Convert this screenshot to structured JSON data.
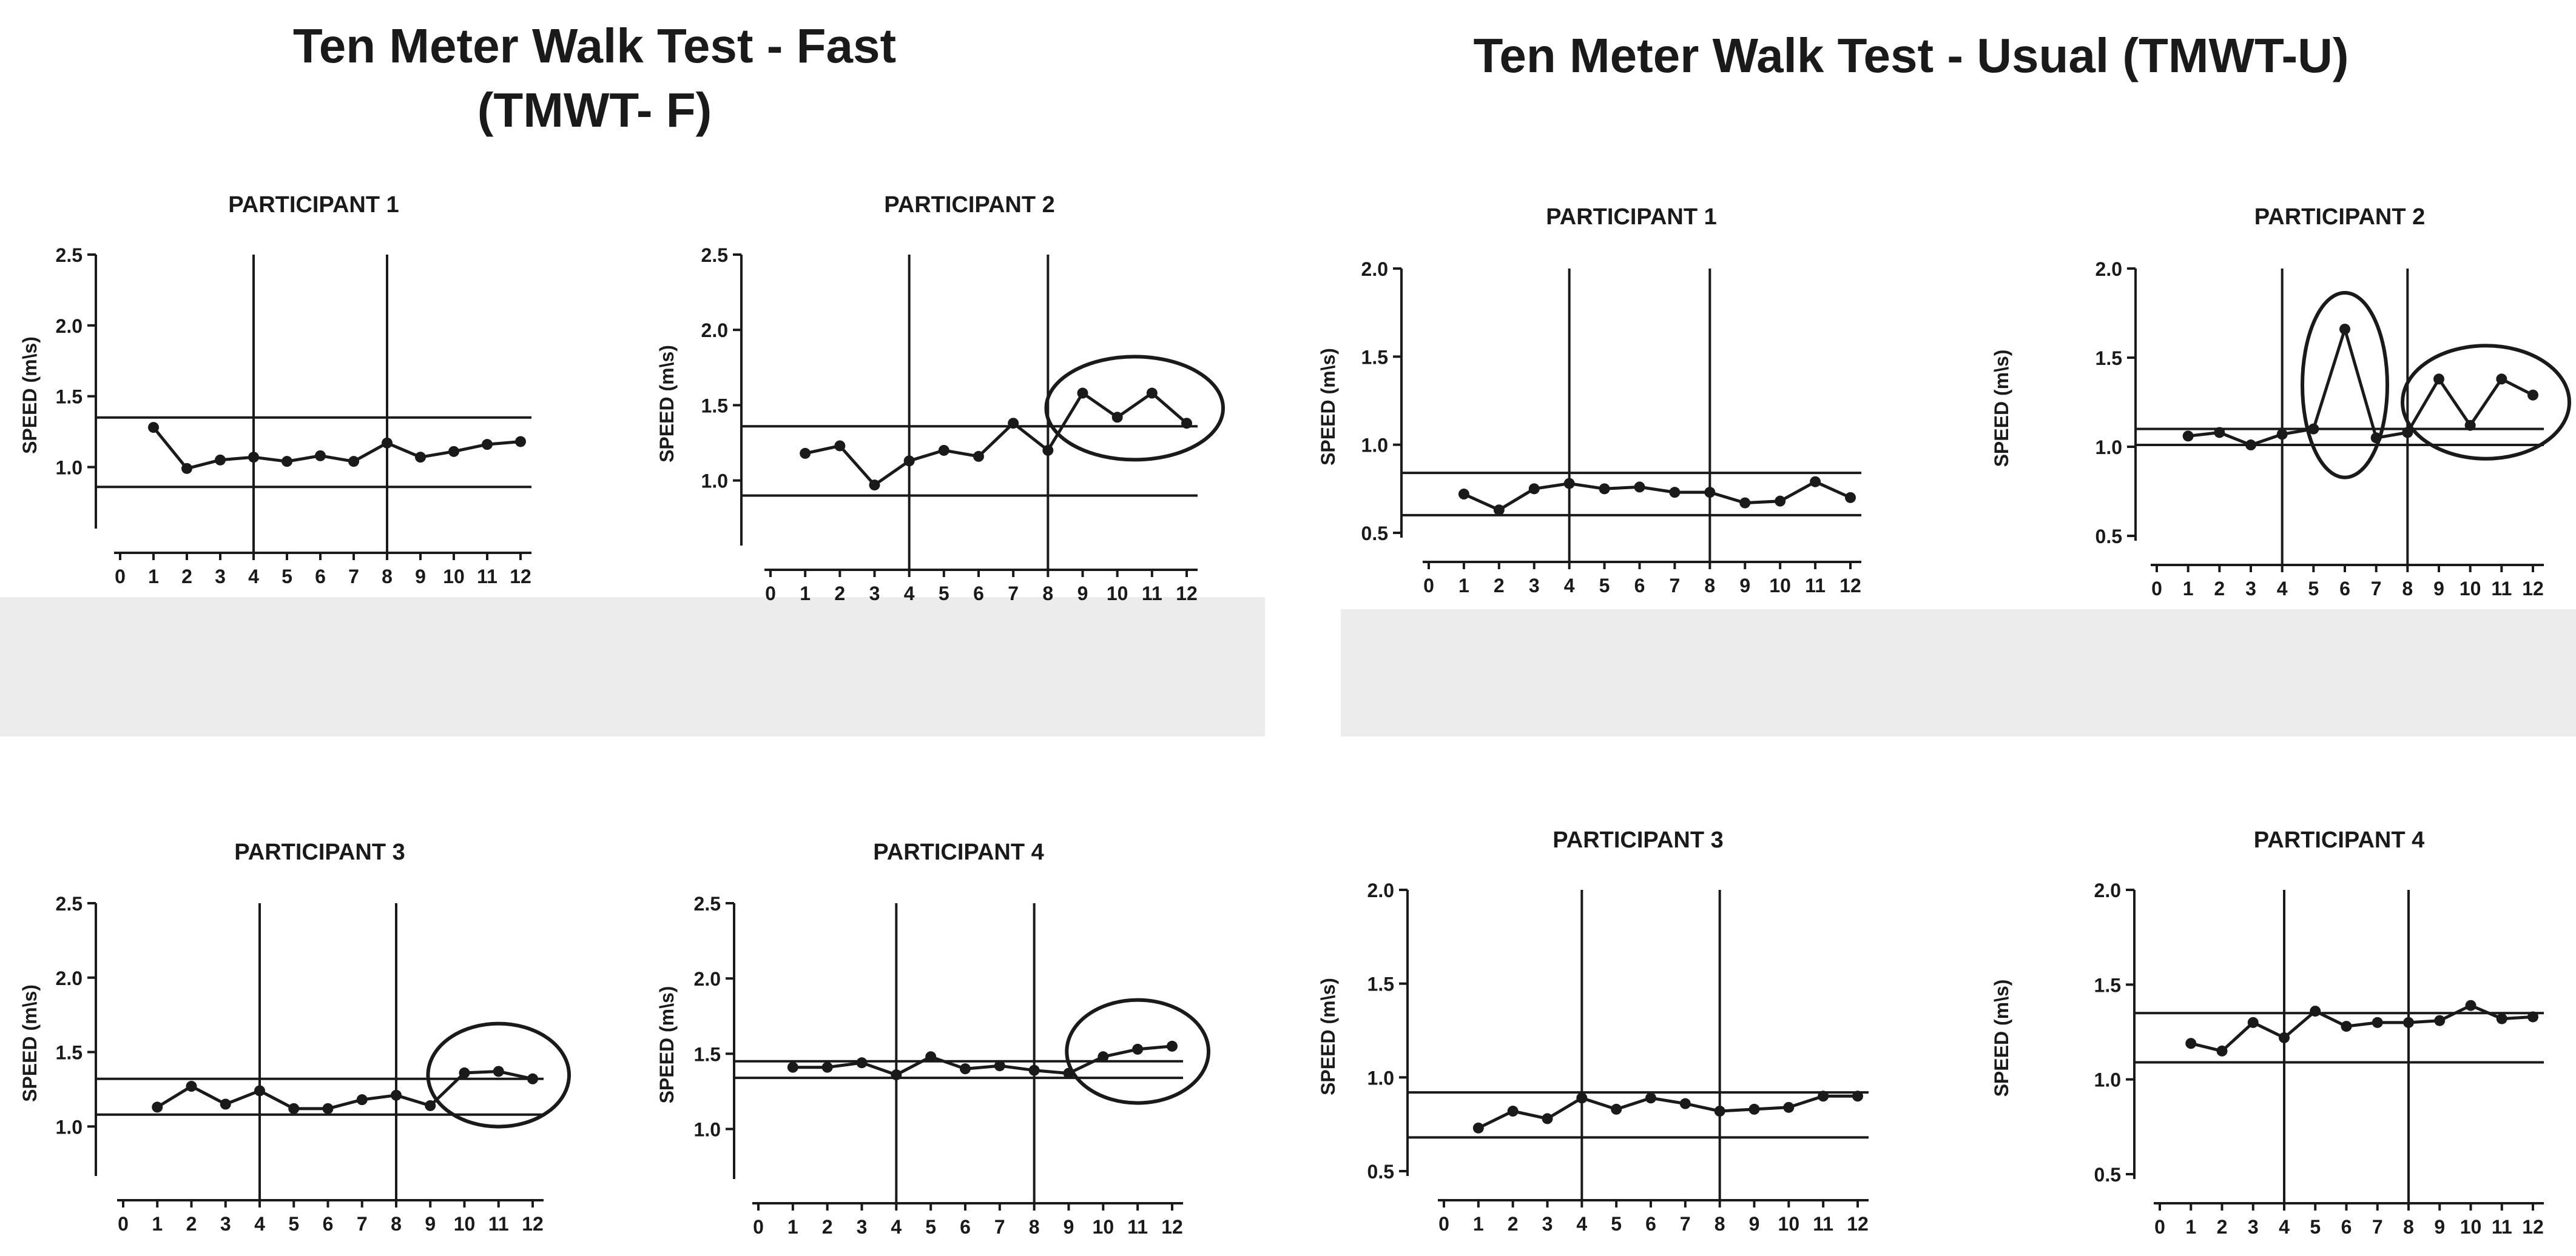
{
  "titles": {
    "fast_line1": "Ten Meter Walk Test - Fast",
    "fast_line2": "(TMWT- F)",
    "usual": "Ten Meter Walk Test - Usual (TMWT-U)"
  },
  "colors": {
    "line": "#1a1a1a",
    "background": "#ffffff",
    "panel_shade": "#ececec"
  },
  "chart_data": [
    {
      "type": "line",
      "group": "Ten Meter Walk Test - Fast (TMWT- F)",
      "title": "PARTICIPANT 1",
      "ylabel": "SPEED (m\\s)",
      "xticks": [
        "0",
        "1",
        "2",
        "3",
        "4",
        "5",
        "6",
        "7",
        "8",
        "9",
        "10",
        "11",
        "12"
      ],
      "yticks": [
        "1.0",
        "1.5",
        "2.0",
        "2.5"
      ],
      "ylim": [
        0.6,
        2.5
      ],
      "phase_lines_x": [
        4,
        8
      ],
      "band": [
        0.86,
        1.35
      ],
      "x": [
        1,
        2,
        3,
        4,
        5,
        6,
        7,
        8,
        9,
        10,
        11,
        12
      ],
      "values": [
        1.28,
        0.99,
        1.05,
        1.07,
        1.04,
        1.08,
        1.04,
        1.17,
        1.07,
        1.11,
        1.16,
        1.18
      ],
      "circled_points": []
    },
    {
      "type": "line",
      "group": "Ten Meter Walk Test - Fast (TMWT- F)",
      "title": "PARTICIPANT 2",
      "ylabel": "SPEED (m\\s)",
      "xticks": [
        "0",
        "1",
        "2",
        "3",
        "4",
        "5",
        "6",
        "7",
        "8",
        "9",
        "10",
        "11",
        "12"
      ],
      "yticks": [
        "1.0",
        "1.5",
        "2.0",
        "2.5"
      ],
      "ylim": [
        0.6,
        2.5
      ],
      "phase_lines_x": [
        4,
        8
      ],
      "band": [
        0.9,
        1.36
      ],
      "x": [
        1,
        2,
        3,
        4,
        5,
        6,
        7,
        8,
        9,
        10,
        11,
        12
      ],
      "values": [
        1.18,
        1.23,
        0.97,
        1.13,
        1.2,
        1.16,
        1.38,
        1.2,
        1.58,
        1.42,
        1.58,
        1.38
      ],
      "circled_points": [
        [
          9,
          12
        ]
      ]
    },
    {
      "type": "line",
      "group": "Ten Meter Walk Test - Usual (TMWT-U)",
      "title": "PARTICIPANT 1",
      "ylabel": "SPEED (m\\s)",
      "xticks": [
        "0",
        "1",
        "2",
        "3",
        "4",
        "5",
        "6",
        "7",
        "8",
        "9",
        "10",
        "11",
        "12"
      ],
      "yticks": [
        "0.5",
        "1.0",
        "1.5",
        "2.0"
      ],
      "ylim": [
        0.5,
        2.0
      ],
      "phase_lines_x": [
        4,
        8
      ],
      "band": [
        0.6,
        0.84
      ],
      "x": [
        1,
        2,
        3,
        4,
        5,
        6,
        7,
        8,
        9,
        10,
        11,
        12
      ],
      "values": [
        0.72,
        0.63,
        0.75,
        0.78,
        0.75,
        0.76,
        0.73,
        0.73,
        0.67,
        0.68,
        0.79,
        0.7
      ],
      "circled_points": []
    },
    {
      "type": "line",
      "group": "Ten Meter Walk Test - Usual (TMWT-U)",
      "title": "PARTICIPANT 2",
      "ylabel": "SPEED (m\\s)",
      "xticks": [
        "0",
        "1",
        "2",
        "3",
        "4",
        "5",
        "6",
        "7",
        "8",
        "9",
        "10",
        "11",
        "12"
      ],
      "yticks": [
        "0.5",
        "1.0",
        "1.5",
        "2.0"
      ],
      "ylim": [
        0.5,
        2.0
      ],
      "phase_lines_x": [
        4,
        8
      ],
      "band": [
        1.01,
        1.1
      ],
      "x": [
        1,
        2,
        3,
        4,
        5,
        6,
        7,
        8,
        9,
        10,
        11,
        12
      ],
      "values": [
        1.06,
        1.08,
        1.01,
        1.07,
        1.1,
        1.66,
        1.05,
        1.08,
        1.38,
        1.12,
        1.38,
        1.29
      ],
      "circled_points": [
        [
          6,
          6
        ],
        [
          9,
          12
        ]
      ]
    },
    {
      "type": "line",
      "group": "Ten Meter Walk Test - Fast (TMWT- F)",
      "title": "PARTICIPANT 3",
      "ylabel": "SPEED (m\\s)",
      "xticks": [
        "0",
        "1",
        "2",
        "3",
        "4",
        "5",
        "6",
        "7",
        "8",
        "9",
        "10",
        "11",
        "12"
      ],
      "yticks": [
        "1.0",
        "1.5",
        "2.0",
        "2.5"
      ],
      "ylim": [
        0.7,
        2.5
      ],
      "phase_lines_x": [
        4,
        8
      ],
      "band": [
        1.08,
        1.32
      ],
      "x": [
        1,
        2,
        3,
        4,
        5,
        6,
        7,
        8,
        9,
        10,
        11,
        12
      ],
      "values": [
        1.13,
        1.27,
        1.15,
        1.24,
        1.12,
        1.12,
        1.18,
        1.21,
        1.14,
        1.36,
        1.37,
        1.32
      ],
      "circled_points": [
        [
          10,
          12
        ]
      ]
    },
    {
      "type": "line",
      "group": "Ten Meter Walk Test - Fast (TMWT- F)",
      "title": "PARTICIPANT 4",
      "ylabel": "SPEED (m\\s)",
      "xticks": [
        "0",
        "1",
        "2",
        "3",
        "4",
        "5",
        "6",
        "7",
        "8",
        "9",
        "10",
        "11",
        "12"
      ],
      "yticks": [
        "1.0",
        "1.5",
        "2.0",
        "2.5"
      ],
      "ylim": [
        0.7,
        2.5
      ],
      "phase_lines_x": [
        4,
        8
      ],
      "band": [
        1.34,
        1.45
      ],
      "x": [
        1,
        2,
        3,
        4,
        5,
        6,
        7,
        8,
        9,
        10,
        11,
        12
      ],
      "values": [
        1.41,
        1.41,
        1.44,
        1.36,
        1.48,
        1.4,
        1.42,
        1.39,
        1.37,
        1.48,
        1.53,
        1.55
      ],
      "circled_points": [
        [
          10,
          12
        ]
      ]
    },
    {
      "type": "line",
      "group": "Ten Meter Walk Test - Usual (TMWT-U)",
      "title": "PARTICIPANT 3",
      "ylabel": "SPEED (m\\s)",
      "xticks": [
        "0",
        "1",
        "2",
        "3",
        "4",
        "5",
        "6",
        "7",
        "8",
        "9",
        "10",
        "11",
        "12"
      ],
      "yticks": [
        "0.5",
        "1.0",
        "1.5",
        "2.0"
      ],
      "ylim": [
        0.5,
        2.0
      ],
      "phase_lines_x": [
        4,
        8
      ],
      "band": [
        0.68,
        0.92
      ],
      "x": [
        1,
        2,
        3,
        4,
        5,
        6,
        7,
        8,
        9,
        10,
        11,
        12
      ],
      "values": [
        0.73,
        0.82,
        0.78,
        0.89,
        0.83,
        0.89,
        0.86,
        0.82,
        0.83,
        0.84,
        0.9,
        0.9
      ],
      "circled_points": []
    },
    {
      "type": "line",
      "group": "Ten Meter Walk Test - Usual (TMWT-U)",
      "title": "PARTICIPANT 4",
      "ylabel": "SPEED (m\\s)",
      "xticks": [
        "0",
        "1",
        "2",
        "3",
        "4",
        "5",
        "6",
        "7",
        "8",
        "9",
        "10",
        "11",
        "12"
      ],
      "yticks": [
        "0.5",
        "1.0",
        "1.5",
        "2.0"
      ],
      "ylim": [
        0.5,
        2.0
      ],
      "phase_lines_x": [
        4,
        8
      ],
      "band": [
        1.09,
        1.35
      ],
      "x": [
        1,
        2,
        3,
        4,
        5,
        6,
        7,
        8,
        9,
        10,
        11,
        12
      ],
      "values": [
        1.19,
        1.15,
        1.3,
        1.22,
        1.36,
        1.28,
        1.3,
        1.3,
        1.31,
        1.39,
        1.32,
        1.33
      ],
      "circled_points": []
    }
  ]
}
